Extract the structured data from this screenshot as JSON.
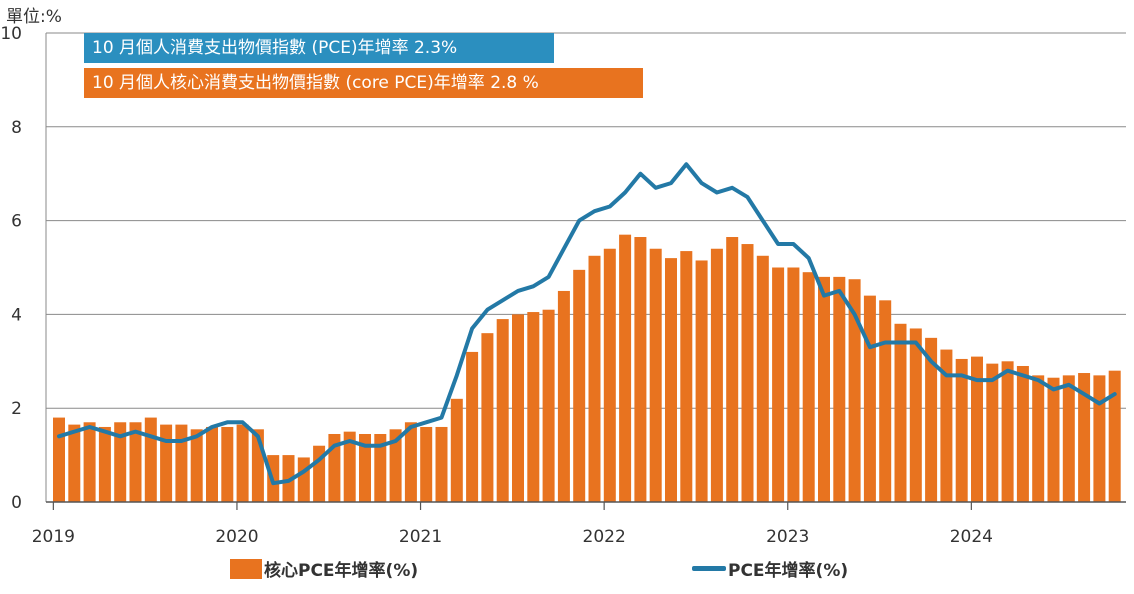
{
  "unit_label": "單位:%",
  "banners": {
    "pce": "10 月個人消費支出物價指數 (PCE)年增率  2.3%",
    "core": "10 月個人核心消費支出物價指數 (core PCE)年增率  2.8 %"
  },
  "legend": {
    "bar_label": "核心PCE年增率(%)",
    "line_label": "PCE年增率(%)"
  },
  "colors": {
    "bar": "#e8731f",
    "line": "#2379a6",
    "banner_pce": "#2b8fbf",
    "banner_core": "#e8731f"
  },
  "chart_data": {
    "type": "bar+line",
    "ylim": [
      0,
      10
    ],
    "yticks": [
      0,
      2,
      4,
      6,
      8,
      10
    ],
    "grid": true,
    "legend_position": "bottom",
    "x_tick_labels": [
      "2019",
      "2020",
      "2021",
      "2022",
      "2023",
      "2024"
    ],
    "x_start": "2019-01",
    "x_end": "2024-10",
    "series": [
      {
        "name": "核心PCE年增率(%)",
        "type": "bar",
        "values": [
          1.8,
          1.65,
          1.7,
          1.6,
          1.7,
          1.7,
          1.8,
          1.65,
          1.65,
          1.55,
          1.6,
          1.6,
          1.65,
          1.55,
          1.0,
          1.0,
          0.95,
          1.2,
          1.45,
          1.5,
          1.45,
          1.45,
          1.55,
          1.7,
          1.6,
          1.6,
          2.2,
          3.2,
          3.6,
          3.9,
          4.0,
          4.05,
          4.1,
          4.5,
          4.95,
          5.25,
          5.4,
          5.7,
          5.65,
          5.4,
          5.2,
          5.35,
          5.15,
          5.4,
          5.65,
          5.5,
          5.25,
          5.0,
          5.0,
          4.9,
          4.8,
          4.8,
          4.75,
          4.4,
          4.3,
          3.8,
          3.7,
          3.5,
          3.25,
          3.05,
          3.1,
          2.95,
          3.0,
          2.9,
          2.7,
          2.65,
          2.7,
          2.75,
          2.7,
          2.8
        ]
      },
      {
        "name": "PCE年增率(%)",
        "type": "line",
        "values": [
          1.4,
          1.5,
          1.6,
          1.5,
          1.4,
          1.5,
          1.4,
          1.3,
          1.3,
          1.4,
          1.6,
          1.7,
          1.7,
          1.4,
          0.4,
          0.45,
          0.65,
          0.9,
          1.2,
          1.3,
          1.2,
          1.2,
          1.3,
          1.6,
          1.7,
          1.8,
          2.7,
          3.7,
          4.1,
          4.3,
          4.5,
          4.6,
          4.8,
          5.4,
          6.0,
          6.2,
          6.3,
          6.6,
          7.0,
          6.7,
          6.8,
          7.2,
          6.8,
          6.6,
          6.7,
          6.5,
          6.0,
          5.5,
          5.5,
          5.2,
          4.4,
          4.5,
          4.0,
          3.3,
          3.4,
          3.4,
          3.4,
          3.0,
          2.7,
          2.7,
          2.6,
          2.6,
          2.8,
          2.7,
          2.6,
          2.4,
          2.5,
          2.3,
          2.1,
          2.3
        ]
      }
    ]
  }
}
